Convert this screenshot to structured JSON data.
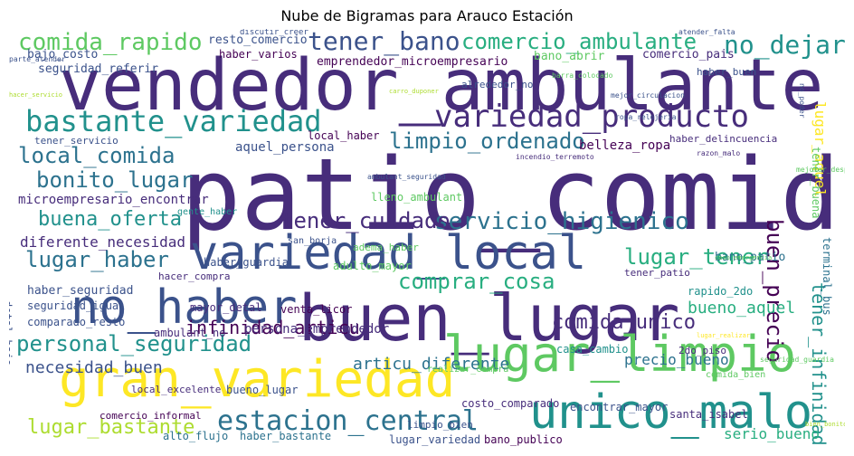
{
  "title": "Nube de Bigramas para Arauco Estación",
  "palette": {
    "c1": "#440154",
    "c2": "#472d7b",
    "c3": "#3b528b",
    "c4": "#2c728e",
    "c5": "#21918c",
    "c6": "#28ae80",
    "c7": "#5ec962",
    "c8": "#addc30",
    "c9": "#fde725"
  },
  "words": [
    {
      "text": "patio_comida",
      "color": "#472d7b"
    },
    {
      "text": "vendedor_ambulante",
      "color": "#472d7b"
    },
    {
      "text": "buen_lugar",
      "color": "#472d7b"
    },
    {
      "text": "variedad_local",
      "color": "#3b528b"
    },
    {
      "text": "gran_variedad",
      "color": "#fde725"
    },
    {
      "text": "lugar_limpio",
      "color": "#5ec962"
    },
    {
      "text": "unico_malo",
      "color": "#21918c"
    },
    {
      "text": "no_haber",
      "color": "#3b528b"
    },
    {
      "text": "bastante_variedad",
      "color": "#21918c"
    },
    {
      "text": "variedad_producto",
      "color": "#472d7b"
    },
    {
      "text": "estacion_central",
      "color": "#2c728e"
    },
    {
      "text": "comida_rapido",
      "color": "#5ec962"
    },
    {
      "text": "tener_bano",
      "color": "#3b528b"
    },
    {
      "text": "comercio_ambulante",
      "color": "#28ae80"
    },
    {
      "text": "no_dejar",
      "color": "#21918c"
    },
    {
      "text": "personal_seguridad",
      "color": "#21918c"
    },
    {
      "text": "servicio_higienico",
      "color": "#2c728e"
    },
    {
      "text": "tener_cuidado",
      "color": "#472d7b"
    },
    {
      "text": "limpio_ordenado",
      "color": "#2c728e"
    },
    {
      "text": "buen_precio",
      "color": "#440154"
    },
    {
      "text": "local_comida",
      "color": "#2c728e"
    },
    {
      "text": "bonito_lugar",
      "color": "#2c728e"
    },
    {
      "text": "buena_oferta",
      "color": "#21918c"
    },
    {
      "text": "lugar_haber",
      "color": "#2c728e"
    },
    {
      "text": "comprar_cosa",
      "color": "#28ae80"
    },
    {
      "text": "lugar_tener",
      "color": "#28ae80"
    },
    {
      "text": "comida_unico",
      "color": "#472d7b"
    },
    {
      "text": "infinidad_articu",
      "color": "#440154"
    },
    {
      "text": "lugar_bastante",
      "color": "#addc30"
    },
    {
      "text": "tener_infinidad",
      "color": "#21918c"
    },
    {
      "text": "diferente_necesidad",
      "color": "#472d7b"
    },
    {
      "text": "articu_diferente",
      "color": "#2c728e"
    },
    {
      "text": "necesidad_buen",
      "color": "#3b528b"
    },
    {
      "text": "bueno_aquel",
      "color": "#28ae80"
    },
    {
      "text": "precio_bueno",
      "color": "#2c728e"
    },
    {
      "text": "serio_bueno",
      "color": "#28ae80"
    },
    {
      "text": "lugar_aquel",
      "color": "#fde725"
    },
    {
      "text": "terminal_bus",
      "color": "#2c728e"
    },
    {
      "text": "tener_buena",
      "color": "#5ec962"
    },
    {
      "text": "resto_comercio",
      "color": "#3b528b"
    },
    {
      "text": "bajo_costo",
      "color": "#3b528b"
    },
    {
      "text": "seguridad_referir",
      "color": "#3b528b"
    },
    {
      "text": "haber_varios",
      "color": "#440154"
    },
    {
      "text": "emprendedor_microempresario",
      "color": "#440154"
    },
    {
      "text": "bano_abrir",
      "color": "#5ec962"
    },
    {
      "text": "comercio_pais",
      "color": "#472d7b"
    },
    {
      "text": "haber_buen",
      "color": "#3b528b"
    },
    {
      "text": "alrededor_no",
      "color": "#3b528b"
    },
    {
      "text": "tener_servicio",
      "color": "#3b528b"
    },
    {
      "text": "aquel_persona",
      "color": "#3b528b"
    },
    {
      "text": "local_haber",
      "color": "#440154"
    },
    {
      "text": "belleza_ropa",
      "color": "#440154"
    },
    {
      "text": "haber_delincuencia",
      "color": "#472d7b"
    },
    {
      "text": "microempresario_encontrar",
      "color": "#472d7b"
    },
    {
      "text": "tener_patio",
      "color": "#472d7b"
    },
    {
      "text": "rapido_2do",
      "color": "#21918c"
    },
    {
      "text": "bano_patio",
      "color": "#2c728e"
    },
    {
      "text": "haber_guardia",
      "color": "#3b528b"
    },
    {
      "text": "adulto_mayor",
      "color": "#5ec962"
    },
    {
      "text": "haber_seguridad",
      "color": "#3b528b"
    },
    {
      "text": "mayor_detal",
      "color": "#472d7b"
    },
    {
      "text": "venta_licor",
      "color": "#440154"
    },
    {
      "text": "persona_emprendedor",
      "color": "#472d7b"
    },
    {
      "text": "seguridad_igual",
      "color": "#3b528b"
    },
    {
      "text": "comparado_resto",
      "color": "#3b528b"
    },
    {
      "text": "ambulant_no",
      "color": "#472d7b"
    },
    {
      "text": "detal_bajo",
      "color": "#3b528b"
    },
    {
      "text": "casa_cambio",
      "color": "#21918c"
    },
    {
      "text": "2do_piso",
      "color": "#472d7b"
    },
    {
      "text": "comida_bien",
      "color": "#5ec962"
    },
    {
      "text": "local_excelente",
      "color": "#472d7b"
    },
    {
      "text": "bueno_lugar",
      "color": "#3b528b"
    },
    {
      "text": "costo_comparado",
      "color": "#472d7b"
    },
    {
      "text": "encontrar_mayor",
      "color": "#3b528b"
    },
    {
      "text": "santa_isabel",
      "color": "#472d7b"
    },
    {
      "text": "comercio_informal",
      "color": "#440154"
    },
    {
      "text": "limpio_bien",
      "color": "#3b528b"
    },
    {
      "text": "bano_publico",
      "color": "#440154"
    },
    {
      "text": "alto_flujo",
      "color": "#2c728e"
    },
    {
      "text": "haber_bastante",
      "color": "#2c728e"
    },
    {
      "text": "lugar_variedad",
      "color": "#3b528b"
    },
    {
      "text": "hacer_compra",
      "color": "#472d7b"
    },
    {
      "text": "san_borja",
      "color": "#3b528b"
    },
    {
      "text": "lleno_ambulant",
      "color": "#5ec962"
    },
    {
      "text": "adema_haber",
      "color": "#5ec962"
    },
    {
      "text": "gente_haber",
      "color": "#21918c"
    },
    {
      "text": "realizar_compra",
      "color": "#5ec962"
    },
    {
      "text": "discutir_creer",
      "color": "#3b528b"
    },
    {
      "text": "atender_falta",
      "color": "#3b528b"
    },
    {
      "text": "no_poder",
      "color": "#3b528b"
    },
    {
      "text": "parte_atender",
      "color": "#3b528b"
    },
    {
      "text": "ropa_relojeria",
      "color": "#3b528b"
    },
    {
      "text": "razon_malo",
      "color": "#472d7b"
    },
    {
      "text": "mejor_circulacion",
      "color": "#3b528b"
    },
    {
      "text": "incendio_terremoto",
      "color": "#472d7b"
    },
    {
      "text": "mejorar_despu",
      "color": "#5ec962"
    },
    {
      "text": "caso_emergencia",
      "color": "#5ec962"
    },
    {
      "text": "ambulant_seguridad",
      "color": "#3b528b"
    },
    {
      "text": "barra_colocado",
      "color": "#5ec962"
    },
    {
      "text": "seguridad_guardia",
      "color": "#5ec962"
    },
    {
      "text": "lugar_realizar",
      "color": "#fde725"
    },
    {
      "text": "bien_bonito",
      "color": "#addc30"
    },
    {
      "text": "carro_duponer",
      "color": "#addc30"
    },
    {
      "text": "hacer_servicio",
      "color": "#addc30"
    }
  ]
}
